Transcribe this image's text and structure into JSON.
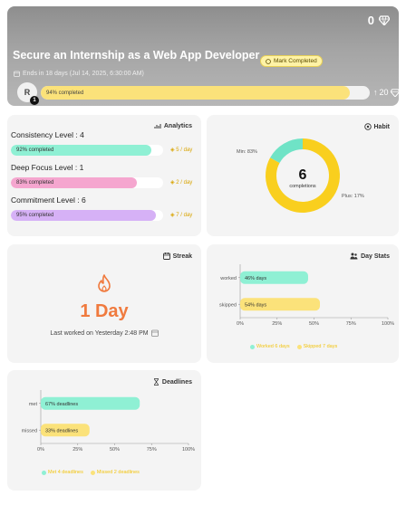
{
  "header": {
    "gem_count": "0",
    "title": "Secure an Internship as a Web App Developer",
    "mark_completed_label": "Mark Completed",
    "ends_text": "Ends in 18 days (Jul 14, 2025, 6:30:00 AM)",
    "avatar_initial": "R",
    "avatar_badge": "1",
    "progress": {
      "label": "94% completed",
      "value": 94
    },
    "reward": "20",
    "colors": {
      "progress_fill": "#fbe27a",
      "banner": "#a5a5a5"
    }
  },
  "analytics": {
    "title": "Analytics",
    "metrics": [
      {
        "label": "Consistency Level : 4",
        "bar_text": "92% completed",
        "value": 92,
        "gem": "5 / day",
        "color": "#8ff0d4"
      },
      {
        "label": "Deep Focus Level : 1",
        "bar_text": "83% completed",
        "value": 83,
        "gem": "2 / day",
        "color": "#f5a6cf"
      },
      {
        "label": "Commitment Level : 6",
        "bar_text": "95% completed",
        "value": 95,
        "gem": "7 / day",
        "color": "#d6b1f6"
      }
    ]
  },
  "habit": {
    "title": "Habit",
    "center_value": "6",
    "center_label": "completions",
    "min_label": "Min: 83%",
    "plus_label": "Plus: 17%",
    "chart_data": {
      "type": "pie",
      "categories": [
        "Min",
        "Plus"
      ],
      "values": [
        83,
        17
      ],
      "colors": [
        "#f9cf1e",
        "#6fe3c6"
      ]
    }
  },
  "streak": {
    "title": "Streak",
    "value": "1 Day",
    "last_worked": "Last worked on Yesterday 2:48 PM",
    "color": "#f07a3e"
  },
  "day_stats": {
    "title": "Day Stats",
    "chart_data": {
      "type": "bar",
      "categories": [
        "worked",
        "skipped"
      ],
      "values": [
        46,
        54
      ],
      "bar_labels": [
        "46% days",
        "54% days"
      ],
      "colors": [
        "#8ff0d4",
        "#fbe27a"
      ],
      "xlim": [
        0,
        100
      ],
      "xticks": [
        "0%",
        "25%",
        "50%",
        "75%",
        "100%"
      ],
      "legend": [
        "Worked 6 days",
        "Skipped 7 days"
      ]
    }
  },
  "deadlines": {
    "title": "Deadlines",
    "chart_data": {
      "type": "bar",
      "categories": [
        "met",
        "missed"
      ],
      "values": [
        67,
        33
      ],
      "bar_labels": [
        "67% deadlines",
        "33% deadlines"
      ],
      "colors": [
        "#8ff0d4",
        "#fbe27a"
      ],
      "xlim": [
        0,
        100
      ],
      "xticks": [
        "0%",
        "25%",
        "50%",
        "75%",
        "100%"
      ],
      "legend": [
        "Met 4 deadlines",
        "Missed 2 deadlines"
      ]
    }
  }
}
